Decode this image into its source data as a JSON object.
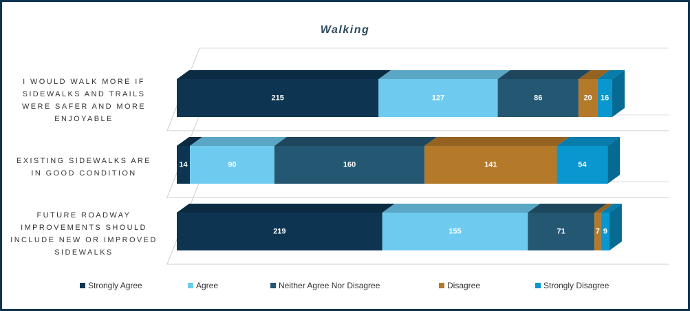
{
  "chart_data": {
    "type": "bar",
    "orientation": "horizontal",
    "stacked": true,
    "title": "Walking",
    "categories": [
      "I WOULD WALK MORE IF SIDEWALKS AND TRAILS WERE SAFER AND MORE ENJOYABLE",
      "EXISTING SIDEWALKS ARE IN GOOD CONDITION",
      "FUTURE ROADWAY IMPROVEMENTS SHOULD INCLUDE NEW OR IMPROVED SIDEWALKS"
    ],
    "series": [
      {
        "name": "Strongly Agree",
        "color": "#0d3552",
        "values": [
          215,
          14,
          219
        ]
      },
      {
        "name": "Agree",
        "color": "#6ecbef",
        "values": [
          127,
          90,
          155
        ]
      },
      {
        "name": "Neither Agree Nor Disagree",
        "color": "#245772",
        "values": [
          86,
          160,
          71
        ]
      },
      {
        "name": "Disagree",
        "color": "#b5792a",
        "values": [
          20,
          141,
          7
        ]
      },
      {
        "name": "Strongly Disagree",
        "color": "#0a97d0",
        "values": [
          16,
          54,
          9
        ]
      }
    ],
    "legend": "bottom"
  }
}
